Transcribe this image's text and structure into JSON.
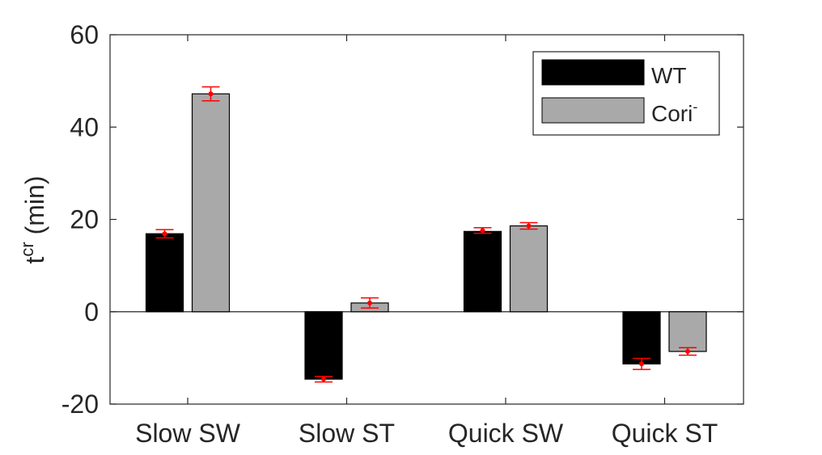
{
  "chart_data": {
    "type": "bar",
    "categories": [
      "Slow SW",
      "Slow ST",
      "Quick SW",
      "Quick ST"
    ],
    "series": [
      {
        "name": "WT",
        "color": "#000000",
        "values": [
          16.9,
          -14.6,
          17.4,
          -11.3
        ],
        "errors": [
          0.9,
          0.6,
          0.6,
          1.2
        ],
        "error_centers": [
          16.9,
          -14.6,
          17.6,
          -11.3
        ]
      },
      {
        "name": "Cori",
        "name_superscript": "-",
        "color": "#a9a9a9",
        "values": [
          47.2,
          1.9,
          18.6,
          -8.6
        ],
        "errors": [
          1.5,
          1.1,
          0.7,
          0.8
        ],
        "error_centers": [
          47.2,
          1.9,
          18.6,
          -8.6
        ]
      }
    ],
    "error_bar_color": "#ff0000",
    "ylabel_main": "t",
    "ylabel_sup": "cr",
    "ylabel_rest": " (min)",
    "ylim": [
      -20,
      60
    ],
    "yticks": [
      "-20",
      "0",
      "20",
      "40",
      "60"
    ],
    "legend_position": "top-right",
    "grid": false
  }
}
